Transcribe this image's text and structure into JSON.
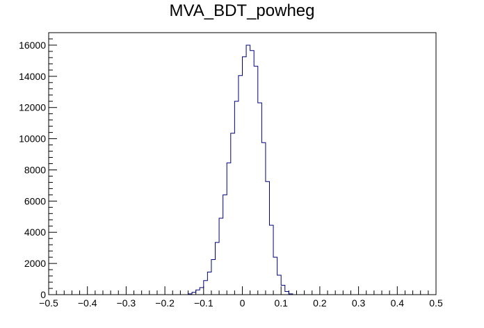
{
  "chart_data": {
    "type": "bar",
    "histogram_style": "step",
    "title": "MVA_BDT_powheg",
    "xlabel": "",
    "ylabel": "",
    "xlim": [
      -0.5,
      0.5
    ],
    "ylim": [
      0,
      16800
    ],
    "x_ticks": [
      -0.5,
      -0.4,
      -0.3,
      -0.2,
      -0.1,
      0,
      0.1,
      0.2,
      0.3,
      0.4,
      0.5
    ],
    "x_tick_labels": [
      "−0.5",
      "−0.4",
      "−0.3",
      "−0.2",
      "−0.1",
      "0",
      "0.1",
      "0.2",
      "0.3",
      "0.4",
      "0.5"
    ],
    "y_ticks": [
      0,
      2000,
      4000,
      6000,
      8000,
      10000,
      12000,
      14000,
      16000
    ],
    "y_tick_labels": [
      "0",
      "2000",
      "4000",
      "6000",
      "8000",
      "10000",
      "12000",
      "14000",
      "16000"
    ],
    "bin_edges": [
      -0.14,
      -0.13,
      -0.12,
      -0.11,
      -0.1,
      -0.09,
      -0.08,
      -0.07,
      -0.06,
      -0.05,
      -0.04,
      -0.03,
      -0.02,
      -0.01,
      0.0,
      0.01,
      0.02,
      0.03,
      0.04,
      0.05,
      0.06,
      0.07,
      0.08,
      0.09,
      0.1,
      0.11,
      0.12,
      0.13
    ],
    "counts": [
      50,
      150,
      300,
      450,
      900,
      1450,
      2250,
      3350,
      4900,
      6400,
      8450,
      10350,
      12400,
      14050,
      15250,
      16000,
      15650,
      14650,
      12300,
      9750,
      7250,
      4450,
      2400,
      1250,
      600,
      200,
      50
    ],
    "line_color": "#00007f",
    "grid": false,
    "legend": "none"
  }
}
